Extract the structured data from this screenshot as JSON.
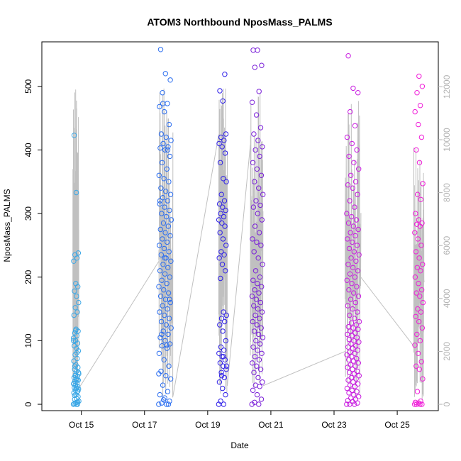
{
  "chart_data": {
    "type": "scatter",
    "title": "ATOM3 Northbound NposMass_PALMS",
    "xlabel": "Date",
    "ylabel": "NposMass_PALMS",
    "x_ticks": [
      "Oct 15",
      "Oct 17",
      "Oct 19",
      "Oct 21",
      "Oct 23",
      "Oct 25"
    ],
    "x_tick_days": [
      15,
      17,
      19,
      21,
      23,
      25
    ],
    "xlim_days": [
      13.75,
      26.3
    ],
    "ylim": [
      -10,
      570
    ],
    "y_ticks": [
      0,
      100,
      200,
      300,
      400,
      500
    ],
    "y2_ticks": [
      0,
      2000,
      4000,
      6000,
      8000,
      10000,
      12000
    ],
    "y2lim": [
      -240,
      13700
    ],
    "grid": false,
    "legend": "none",
    "colors": {
      "flight1": "#3aa7e6",
      "flight2": "#2a6df0",
      "flight3": "#2e1fe8",
      "flight4": "#7a1fd8",
      "flight5": "#c81ce0",
      "flight6": "#f01cd8",
      "altitude": "#c0c0c0"
    },
    "series": [
      {
        "flight": "flight1",
        "x_day_range": [
          14.75,
          14.92
        ],
        "values": [
          0,
          3,
          8,
          12,
          15,
          18,
          20,
          22,
          24,
          25,
          26,
          28,
          30,
          32,
          34,
          36,
          38,
          40,
          42,
          44,
          46,
          48,
          52,
          55,
          58,
          62,
          68,
          72,
          78,
          84,
          88,
          92,
          96,
          100,
          104,
          108,
          112,
          115,
          118,
          140,
          145,
          152,
          160,
          170,
          178,
          185,
          190,
          225,
          230,
          235,
          238,
          333,
          423,
          0,
          2,
          5,
          9,
          14,
          21,
          27,
          33,
          39,
          45,
          50,
          0,
          1,
          4,
          116,
          100,
          81,
          60
        ]
      },
      {
        "flight": "flight2",
        "x_day_range": [
          17.45,
          17.85
        ],
        "values": [
          0,
          0,
          2,
          5,
          10,
          15,
          20,
          30,
          40,
          45,
          52,
          60,
          70,
          80,
          88,
          92,
          95,
          100,
          105,
          110,
          115,
          120,
          125,
          130,
          135,
          140,
          145,
          150,
          155,
          160,
          165,
          170,
          175,
          180,
          185,
          190,
          195,
          200,
          205,
          210,
          215,
          220,
          225,
          230,
          235,
          240,
          245,
          250,
          255,
          260,
          265,
          270,
          275,
          280,
          285,
          290,
          295,
          300,
          305,
          310,
          315,
          320,
          325,
          330,
          335,
          340,
          350,
          355,
          360,
          370,
          380,
          390,
          400,
          403,
          405,
          410,
          415,
          420,
          425,
          440,
          460,
          468,
          473,
          490,
          510,
          520,
          558,
          0,
          7,
          48,
          93,
          110,
          165,
          230,
          320,
          400,
          473
        ]
      },
      {
        "flight": "flight3",
        "x_day_range": [
          19.35,
          19.6
        ],
        "values": [
          0,
          0,
          5,
          15,
          25,
          35,
          42,
          50,
          55,
          60,
          65,
          70,
          75,
          80,
          85,
          90,
          100,
          115,
          125,
          130,
          135,
          140,
          145,
          198,
          210,
          220,
          230,
          235,
          240,
          250,
          260,
          270,
          280,
          285,
          290,
          295,
          300,
          305,
          310,
          315,
          320,
          330,
          350,
          355,
          380,
          395,
          405,
          410,
          415,
          420,
          425,
          477,
          493,
          519,
          45,
          60,
          75
        ]
      },
      {
        "flight": "flight4",
        "x_day_range": [
          20.4,
          20.75
        ],
        "values": [
          0,
          0,
          3,
          8,
          15,
          22,
          28,
          30,
          35,
          42,
          50,
          55,
          60,
          65,
          70,
          75,
          80,
          85,
          90,
          95,
          100,
          105,
          110,
          115,
          120,
          125,
          130,
          135,
          140,
          145,
          150,
          155,
          160,
          165,
          170,
          175,
          180,
          185,
          190,
          195,
          200,
          210,
          220,
          230,
          240,
          250,
          255,
          260,
          270,
          280,
          290,
          300,
          310,
          313,
          320,
          330,
          340,
          350,
          360,
          370,
          380,
          390,
          400,
          405,
          415,
          425,
          435,
          455,
          475,
          492,
          530,
          533,
          557,
          557
        ]
      },
      {
        "flight": "flight5",
        "x_day_range": [
          23.4,
          23.8
        ],
        "values": [
          0,
          0,
          0,
          2,
          4,
          6,
          8,
          10,
          12,
          15,
          18,
          20,
          22,
          25,
          28,
          30,
          32,
          35,
          38,
          40,
          42,
          45,
          48,
          50,
          52,
          55,
          58,
          60,
          62,
          65,
          68,
          70,
          72,
          75,
          78,
          80,
          82,
          85,
          88,
          90,
          92,
          95,
          98,
          100,
          102,
          105,
          108,
          110,
          112,
          115,
          118,
          120,
          122,
          125,
          128,
          130,
          135,
          140,
          145,
          150,
          155,
          160,
          165,
          170,
          175,
          180,
          185,
          190,
          195,
          200,
          205,
          210,
          215,
          220,
          225,
          230,
          235,
          240,
          245,
          250,
          255,
          260,
          265,
          270,
          275,
          280,
          285,
          290,
          295,
          300,
          310,
          320,
          330,
          340,
          345,
          350,
          360,
          370,
          380,
          390,
          400,
          410,
          420,
          438,
          460,
          490,
          497,
          548
        ]
      },
      {
        "flight": "flight6",
        "x_day_range": [
          25.55,
          25.82
        ],
        "values": [
          0,
          0,
          0,
          0,
          2,
          3,
          5,
          20,
          40,
          55,
          60,
          67,
          80,
          93,
          100,
          110,
          120,
          130,
          138,
          145,
          150,
          160,
          170,
          175,
          180,
          190,
          200,
          210,
          215,
          220,
          230,
          240,
          250,
          260,
          270,
          280,
          283,
          285,
          290,
          300,
          322,
          330,
          347,
          380,
          400,
          420,
          440,
          460,
          470,
          490,
          500,
          516
        ]
      }
    ],
    "altitude_series": {
      "name": "",
      "segments": [
        {
          "day_range": [
            14.73,
            14.92
          ],
          "low": 200,
          "high": 12000
        },
        {
          "day_range": [
            17.45,
            17.9
          ],
          "low": 200,
          "high": 12000
        },
        {
          "day_range": [
            19.35,
            19.62
          ],
          "low": 200,
          "high": 12000
        },
        {
          "day_range": [
            20.35,
            20.75
          ],
          "low": 200,
          "high": 12000
        },
        {
          "day_range": [
            23.35,
            23.85
          ],
          "low": 200,
          "high": 11500
        },
        {
          "day_range": [
            25.52,
            25.85
          ],
          "low": 200,
          "high": 10000
        }
      ],
      "transits": [
        {
          "from_day": 14.92,
          "from": 600,
          "to_day": 17.45,
          "to": 5400
        },
        {
          "from_day": 17.9,
          "from": 300,
          "to_day": 19.35,
          "to": 10200
        },
        {
          "from_day": 19.62,
          "from": 700,
          "to_day": 20.35,
          "to": 9800
        },
        {
          "from_day": 20.75,
          "from": 700,
          "to_day": 23.35,
          "to": 2000
        },
        {
          "from_day": 23.85,
          "from": 4800,
          "to_day": 25.52,
          "to": 2200
        }
      ]
    }
  }
}
